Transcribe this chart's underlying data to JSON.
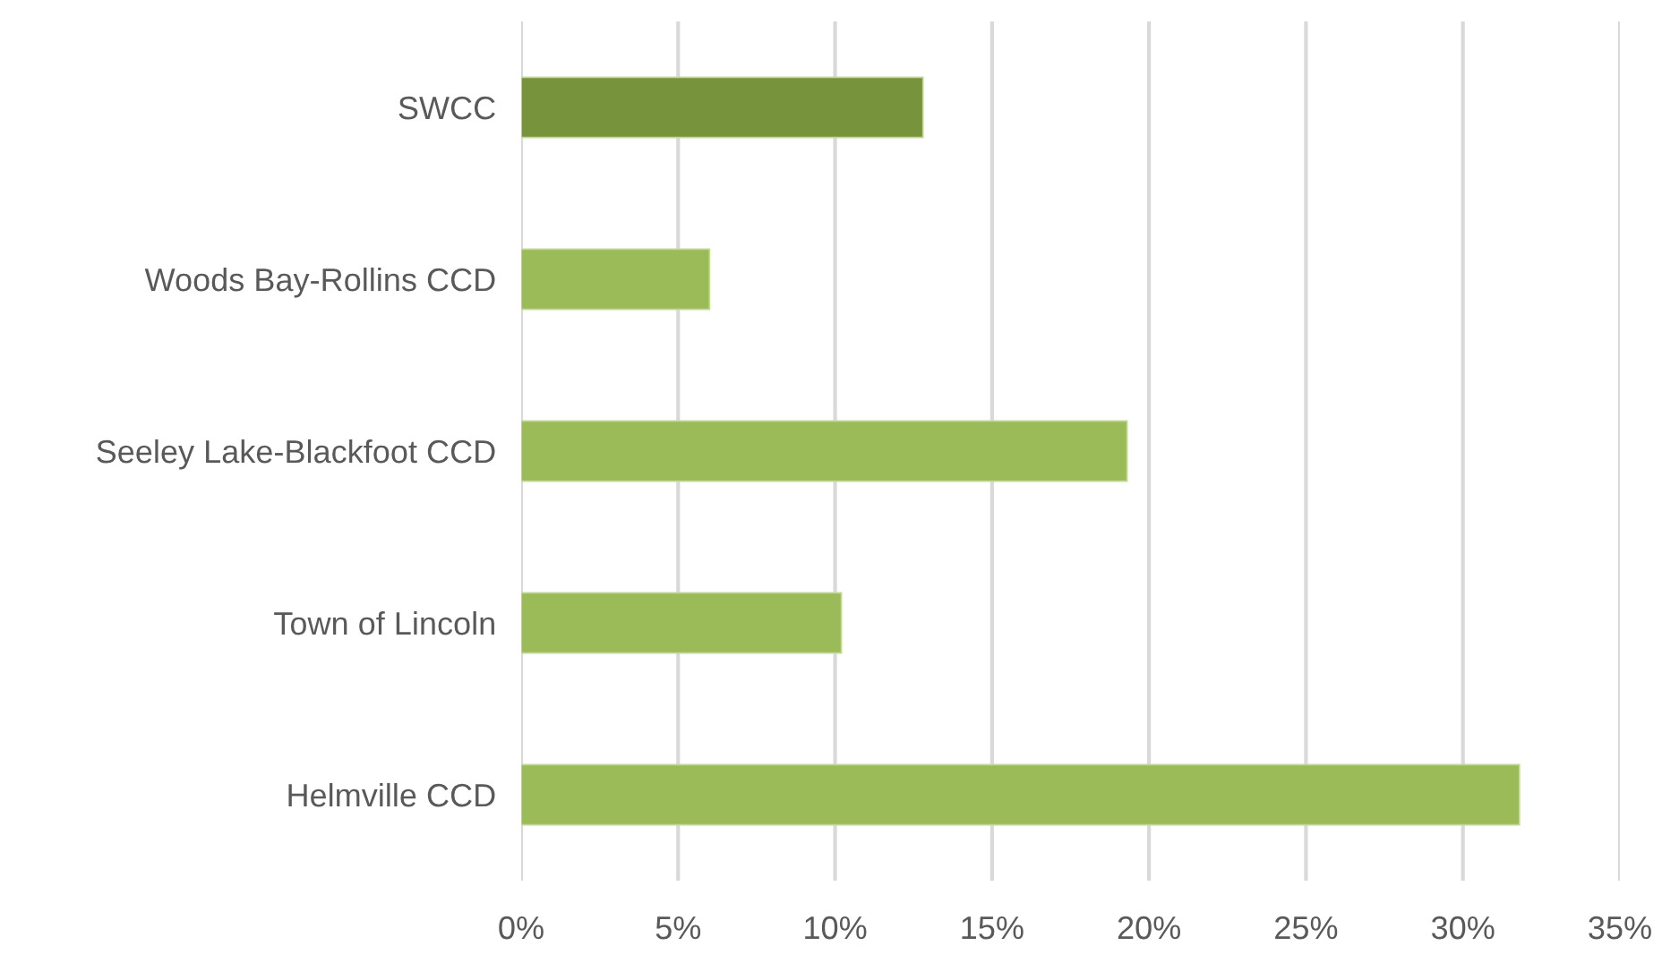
{
  "chart_data": {
    "type": "bar",
    "orientation": "horizontal",
    "categories": [
      "SWCC",
      "Woods Bay-Rollins CCD",
      "Seeley Lake-Blackfoot CCD",
      "Town of Lincoln",
      "Helmville CCD"
    ],
    "values": [
      12.8,
      6.0,
      19.3,
      10.2,
      31.8
    ],
    "colors": [
      "#77933c",
      "#9bbb59",
      "#9bbb59",
      "#9bbb59",
      "#9bbb59"
    ],
    "xlim": [
      0,
      35
    ],
    "xticks": [
      {
        "value": 0,
        "label": "0%"
      },
      {
        "value": 5,
        "label": "5%"
      },
      {
        "value": 10,
        "label": "10%"
      },
      {
        "value": 15,
        "label": "15%"
      },
      {
        "value": 20,
        "label": "20%"
      },
      {
        "value": 25,
        "label": "25%"
      },
      {
        "value": 30,
        "label": "30%"
      },
      {
        "value": 35,
        "label": "35%"
      }
    ],
    "grid": "x",
    "legend": false
  }
}
